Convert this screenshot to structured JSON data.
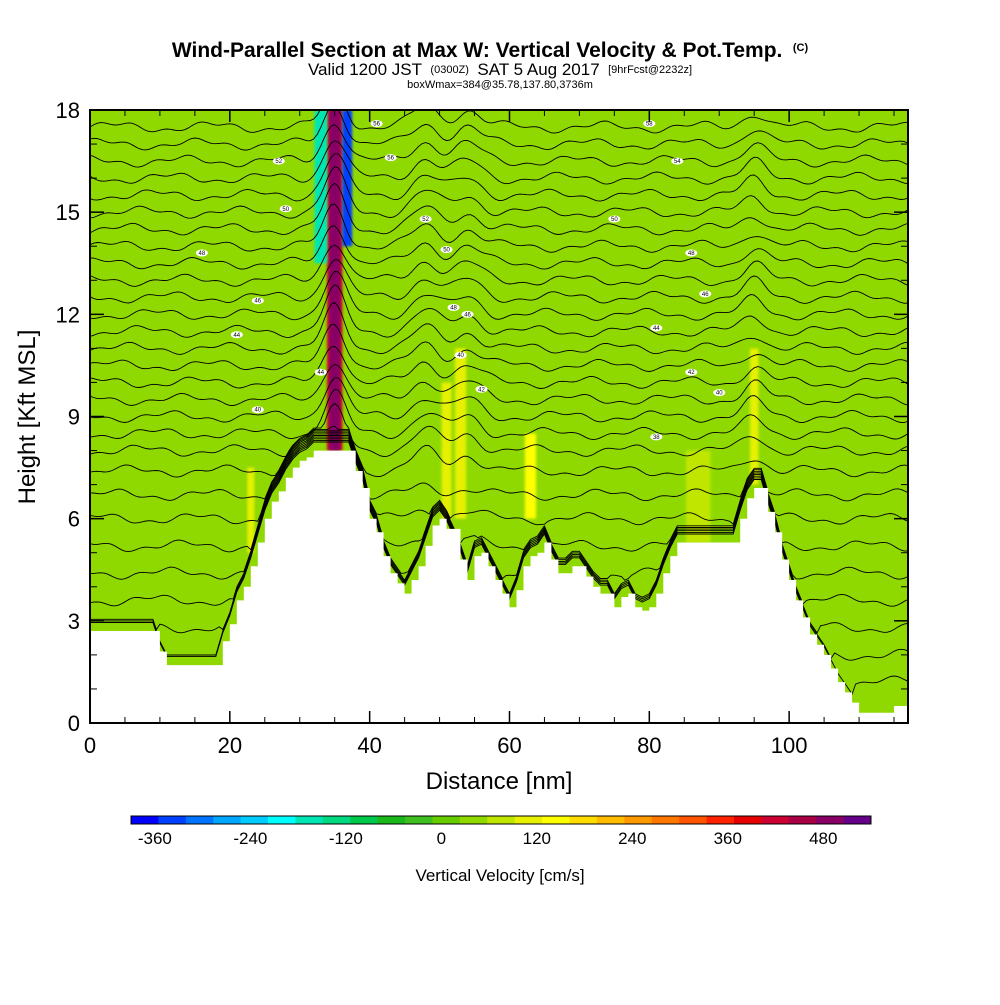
{
  "chart_data": {
    "type": "heatmap",
    "title": "Wind-Parallel Section at Max W: Vertical Velocity & Pot.Temp.",
    "title_tag": "(C)",
    "subtitle": {
      "valid": "Valid 1200 JST",
      "utc": "(0300Z)",
      "date": "SAT 5 Aug 2017",
      "forecast": "[9hrFcst@2232z]"
    },
    "info_line": "boxWmax=384@35.78,137.80,3736m",
    "xlabel": "Distance [nm]",
    "ylabel": "Height [Kft MSL]",
    "xlim": [
      0,
      117
    ],
    "ylim": [
      0,
      18
    ],
    "x_ticks": [
      0,
      20,
      40,
      60,
      80,
      100
    ],
    "y_ticks": [
      0,
      3,
      6,
      9,
      12,
      15,
      18
    ],
    "terrain": {
      "x": [
        0,
        9,
        10,
        11,
        18,
        19,
        20,
        21,
        22,
        23,
        24,
        25,
        26,
        27,
        28,
        29,
        30,
        31,
        32,
        33,
        37,
        38,
        39,
        40,
        41,
        42,
        43,
        44,
        45,
        46,
        47,
        48,
        49,
        50,
        51,
        53,
        54,
        55,
        56,
        57,
        58,
        59,
        60,
        61,
        62,
        63,
        64,
        65,
        66,
        67,
        68,
        69,
        70,
        71,
        72,
        73,
        74,
        75,
        76,
        77,
        78,
        79,
        80,
        81,
        82,
        83,
        84,
        85,
        86,
        87,
        88,
        89,
        90,
        91,
        92,
        93,
        94,
        95,
        96,
        97,
        98,
        99,
        100,
        101,
        102,
        103,
        104,
        105,
        106,
        107,
        108,
        109,
        110,
        111,
        112,
        113,
        114,
        115,
        116,
        117
      ],
      "height_kft": [
        2.7,
        2.7,
        2.1,
        1.7,
        1.7,
        2.4,
        2.9,
        3.6,
        4.0,
        4.6,
        5.3,
        6.0,
        6.5,
        6.8,
        7.2,
        7.5,
        7.7,
        7.8,
        8.0,
        8.0,
        8.0,
        7.4,
        6.9,
        6.0,
        5.6,
        4.9,
        4.4,
        4.1,
        3.8,
        4.2,
        4.6,
        5.2,
        5.8,
        6.0,
        5.7,
        4.8,
        4.2,
        4.9,
        5.0,
        4.6,
        4.2,
        3.8,
        3.4,
        3.9,
        4.6,
        4.9,
        5.0,
        5.3,
        4.8,
        4.4,
        4.4,
        4.6,
        4.6,
        4.3,
        4.0,
        3.8,
        3.8,
        3.4,
        3.7,
        3.8,
        3.4,
        3.3,
        3.4,
        3.8,
        4.4,
        4.9,
        5.3,
        5.3,
        5.3,
        5.3,
        5.3,
        5.3,
        5.3,
        5.3,
        5.3,
        6.0,
        6.6,
        6.9,
        6.9,
        6.2,
        5.6,
        4.8,
        4.2,
        3.6,
        3.1,
        2.6,
        2.3,
        2.0,
        1.6,
        1.2,
        0.9,
        0.6,
        0.3,
        0.3,
        0.3,
        0.3,
        0.3,
        0.5,
        0.5,
        0.5
      ]
    },
    "isentrope_heights_kft": [
      17.5,
      17.0,
      16.5,
      16.0,
      15.5,
      15.0,
      14.5,
      14.0,
      13.5,
      13.0,
      12.5,
      12.0,
      11.5,
      11.0,
      10.5,
      10.0,
      9.5,
      9.0,
      8.5,
      8.0,
      7.4,
      6.7,
      6.0,
      5.2,
      4.4,
      3.6,
      2.8,
      2.0,
      1.2
    ],
    "isentrope_labels": [
      {
        "text": "56",
        "x": 41,
        "y": 17.6
      },
      {
        "text": "58",
        "x": 80,
        "y": 17.6
      },
      {
        "text": "52",
        "x": 27,
        "y": 16.5
      },
      {
        "text": "56",
        "x": 43,
        "y": 16.6
      },
      {
        "text": "54",
        "x": 84,
        "y": 16.5
      },
      {
        "text": "50",
        "x": 28,
        "y": 15.1
      },
      {
        "text": "52",
        "x": 48,
        "y": 14.8
      },
      {
        "text": "50",
        "x": 75,
        "y": 14.8
      },
      {
        "text": "48",
        "x": 16,
        "y": 13.8
      },
      {
        "text": "50",
        "x": 51,
        "y": 13.9
      },
      {
        "text": "48",
        "x": 86,
        "y": 13.8
      },
      {
        "text": "46",
        "x": 24,
        "y": 12.4
      },
      {
        "text": "48",
        "x": 52,
        "y": 12.2
      },
      {
        "text": "46",
        "x": 54,
        "y": 12.0
      },
      {
        "text": "46",
        "x": 88,
        "y": 12.6
      },
      {
        "text": "44",
        "x": 21,
        "y": 11.4
      },
      {
        "text": "44",
        "x": 81,
        "y": 11.6
      },
      {
        "text": "44",
        "x": 33,
        "y": 10.3
      },
      {
        "text": "40",
        "x": 53,
        "y": 10.8
      },
      {
        "text": "42",
        "x": 86,
        "y": 10.3
      },
      {
        "text": "42",
        "x": 56,
        "y": 9.8
      },
      {
        "text": "40",
        "x": 90,
        "y": 9.7
      },
      {
        "text": "40",
        "x": 24,
        "y": 9.2
      },
      {
        "text": "38",
        "x": 81,
        "y": 8.4
      }
    ],
    "colorbar": {
      "label": "Vertical Velocity [cm/s]",
      "range": [
        -390,
        540
      ],
      "tick_values": [
        -360,
        -240,
        -120,
        0,
        120,
        240,
        360,
        480
      ],
      "tick_labels": [
        "-360",
        "-240",
        "-120",
        "0",
        "120",
        "240",
        "360",
        "480"
      ],
      "colors": [
        "#0000ff",
        "#0040ff",
        "#0073ff",
        "#00a6ff",
        "#00ccff",
        "#00ffff",
        "#00e6b3",
        "#00d980",
        "#00c84a",
        "#1ab81a",
        "#40c020",
        "#66cc00",
        "#8fd900",
        "#c0e600",
        "#e6f000",
        "#ffff00",
        "#ffdd00",
        "#ffbb00",
        "#ff9900",
        "#ff7700",
        "#ff5500",
        "#ff2200",
        "#e60000",
        "#cc0033",
        "#aa0044",
        "#880066",
        "#660088"
      ]
    },
    "vertical_velocity_features": [
      {
        "x": 35,
        "width": 2.2,
        "y_top": 18,
        "y_bottom": 8,
        "value": 420
      },
      {
        "x": 33,
        "width": 1.8,
        "y_top": 18,
        "y_bottom": 13.5,
        "value": -150
      },
      {
        "x": 36.8,
        "width": 1.4,
        "y_top": 18,
        "y_bottom": 14,
        "value": -330
      },
      {
        "x": 53,
        "width": 1.6,
        "y_top": 11,
        "y_bottom": 6,
        "value": 120
      },
      {
        "x": 51,
        "width": 1.4,
        "y_top": 10,
        "y_bottom": 6,
        "value": 120
      },
      {
        "x": 63,
        "width": 1.6,
        "y_top": 8.5,
        "y_bottom": 6,
        "value": 140
      },
      {
        "x": 95,
        "width": 1.2,
        "y_top": 11,
        "y_bottom": 7,
        "value": 110
      },
      {
        "x": 23,
        "width": 1.0,
        "y_top": 7.5,
        "y_bottom": 5,
        "value": 110
      },
      {
        "x": 87,
        "width": 3.5,
        "y_top": 8,
        "y_bottom": 5.3,
        "value": 90
      }
    ],
    "background_value": 30,
    "grid": false,
    "legend": "bottom"
  }
}
